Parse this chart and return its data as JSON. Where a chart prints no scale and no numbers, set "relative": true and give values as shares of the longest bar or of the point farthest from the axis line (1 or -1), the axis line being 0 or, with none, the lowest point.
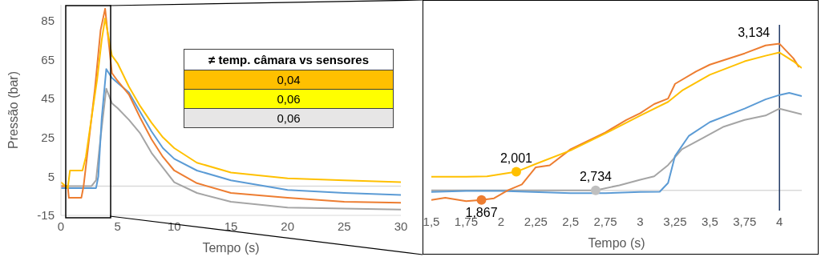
{
  "chart_data": [
    {
      "type": "line",
      "xlabel": "Tempo (s)",
      "ylabel": "Pressão (bar)",
      "xlim": [
        0,
        30
      ],
      "xticks": [
        0,
        5,
        10,
        15,
        20,
        25,
        30
      ],
      "ylim": [
        -15,
        93
      ],
      "yticks": [
        -15,
        5,
        25,
        45,
        65,
        85
      ],
      "marker": "none",
      "line_style": "solid",
      "ref_lines": [
        {
          "axis": "y",
          "value": 0,
          "label": null,
          "color": "#d9d9d9"
        }
      ],
      "series": [
        {
          "color": "#a5a5a5",
          "x": [
            0,
            1,
            2,
            2.7,
            3.1,
            3.5,
            4,
            4.5,
            5,
            6,
            7,
            8,
            9,
            10,
            12,
            15,
            20,
            25,
            30
          ],
          "values": [
            0,
            0,
            0,
            0,
            3,
            25,
            50,
            42.5,
            40,
            34,
            27,
            17,
            9.5,
            2,
            -3.5,
            -8,
            -11,
            -11.5,
            -12
          ]
        },
        {
          "color": "#5b9bd5",
          "x": [
            0,
            1,
            2,
            3.1,
            3.3,
            3.6,
            4,
            4.5,
            5,
            6,
            7,
            8,
            9,
            10,
            12,
            15,
            20,
            25,
            30
          ],
          "values": [
            -1,
            -1,
            -1,
            -1,
            5,
            35,
            60,
            55.5,
            53,
            48,
            38,
            28,
            19.5,
            14,
            8,
            3,
            -2,
            -3.5,
            -4.5
          ]
        },
        {
          "color": "#ed7d31",
          "x": [
            0,
            0.6,
            0.7,
            1.8,
            2,
            2.5,
            3,
            3.5,
            3.9,
            4.5,
            5,
            6,
            7,
            8,
            9,
            10,
            12,
            15,
            20,
            25,
            30
          ],
          "values": [
            0,
            0,
            -6,
            -6,
            0,
            25,
            50,
            80,
            91,
            58,
            54,
            47,
            35,
            24,
            15,
            8,
            1.5,
            -3.5,
            -6,
            -8,
            -8.5
          ]
        },
        {
          "color": "#ffc000",
          "x": [
            0,
            0.6,
            0.8,
            1.9,
            2.2,
            2.7,
            3.2,
            3.6,
            3.9,
            4.5,
            5,
            6,
            7,
            8,
            9,
            10,
            12,
            15,
            20,
            25,
            30
          ],
          "values": [
            2,
            -1,
            8,
            8,
            15,
            35,
            55,
            75,
            86,
            67,
            63,
            51,
            41,
            32.5,
            25,
            19.5,
            12,
            7,
            4,
            3,
            2
          ]
        }
      ]
    },
    {
      "type": "line",
      "xlabel": "Tempo (s)",
      "relative": true,
      "xlim": [
        1.5,
        4.16
      ],
      "xticks": [
        {
          "value": 1.5,
          "label": "1,5"
        },
        {
          "value": 1.75,
          "label": "1,75"
        },
        {
          "value": 2,
          "label": "2"
        },
        {
          "value": 2.25,
          "label": "2,25"
        },
        {
          "value": 2.5,
          "label": "2,5"
        },
        {
          "value": 2.75,
          "label": "2,75"
        },
        {
          "value": 3,
          "label": "3"
        },
        {
          "value": 3.25,
          "label": "3,25"
        },
        {
          "value": 3.5,
          "label": "3,5"
        },
        {
          "value": 3.75,
          "label": "3,75"
        },
        {
          "value": 4,
          "label": "4"
        }
      ],
      "marker": "none",
      "line_style": "solid",
      "ref_lines": [
        {
          "axis": "x",
          "value": 4,
          "label": null,
          "color": "#1f3864"
        }
      ],
      "annotations": [
        {
          "text": "2,001",
          "x": 2.11,
          "y": 0.126
        },
        {
          "text": "1,867",
          "x": 1.86,
          "y": -0.066
        },
        {
          "text": "2,734",
          "x": 2.68,
          "y": 0
        },
        {
          "text": "3,134",
          "x": 4,
          "y": 1
        }
      ],
      "series": [
        {
          "color": "#a5a5a5",
          "x": [
            1.5,
            2,
            2.5,
            2.68,
            2.85,
            3,
            3.1,
            3.2,
            3.3,
            3.45,
            3.6,
            3.75,
            3.9,
            4,
            4.16
          ],
          "values": [
            0,
            0,
            0,
            0,
            0.034,
            0.072,
            0.095,
            0.172,
            0.28,
            0.357,
            0.434,
            0.48,
            0.51,
            0.557,
            0.518
          ]
        },
        {
          "color": "#5b9bd5",
          "x": [
            1.5,
            1.75,
            2,
            2.5,
            2.75,
            3,
            3.14,
            3.2,
            3.25,
            3.35,
            3.5,
            3.75,
            3.9,
            4,
            4.07,
            4.16
          ],
          "values": [
            -0.012,
            -0.005,
            -0.005,
            -0.02,
            -0.02,
            -0.012,
            -0.01,
            0.05,
            0.234,
            0.372,
            0.465,
            0.557,
            0.62,
            0.65,
            0.665,
            0.642
          ]
        },
        {
          "color": "#ed7d31",
          "x": [
            1.5,
            1.6,
            1.75,
            1.86,
            1.95,
            2.05,
            2.15,
            2.25,
            2.35,
            2.5,
            2.75,
            2.9,
            3,
            3.1,
            3.2,
            3.25,
            3.4,
            3.5,
            3.75,
            3.9,
            4,
            4.1,
            4.14
          ],
          "values": [
            -0.066,
            -0.051,
            -0.074,
            -0.066,
            -0.055,
            0,
            0.04,
            0.157,
            0.17,
            0.28,
            0.395,
            0.48,
            0.526,
            0.588,
            0.626,
            0.726,
            0.81,
            0.857,
            0.934,
            0.988,
            1,
            0.9,
            0.84
          ]
        },
        {
          "color": "#ffc000",
          "x": [
            1.5,
            1.75,
            1.9,
            2.11,
            2.25,
            2.5,
            2.75,
            3,
            3.2,
            3.3,
            3.5,
            3.75,
            3.9,
            4,
            4.1,
            4.16
          ],
          "values": [
            0.092,
            0.092,
            0.095,
            0.126,
            0.18,
            0.272,
            0.388,
            0.51,
            0.603,
            0.68,
            0.788,
            0.88,
            0.918,
            0.94,
            0.88,
            0.834
          ]
        },
        {
          "type": "scatter",
          "marker": "circle",
          "x": [
            1.86,
            2.11,
            2.68
          ],
          "values": [
            -0.066,
            0.126,
            0
          ],
          "colors": [
            "#ed7d31",
            "#ffc000",
            "#bfbfbf"
          ]
        }
      ]
    },
    {
      "type": "other",
      "title": "≠ temp. câmara vs sensores",
      "annotations": [
        "0,04",
        "0,06",
        "0,06"
      ],
      "colors": [
        "#ffc000",
        "#ffff00",
        "#e7e6e6"
      ]
    }
  ]
}
